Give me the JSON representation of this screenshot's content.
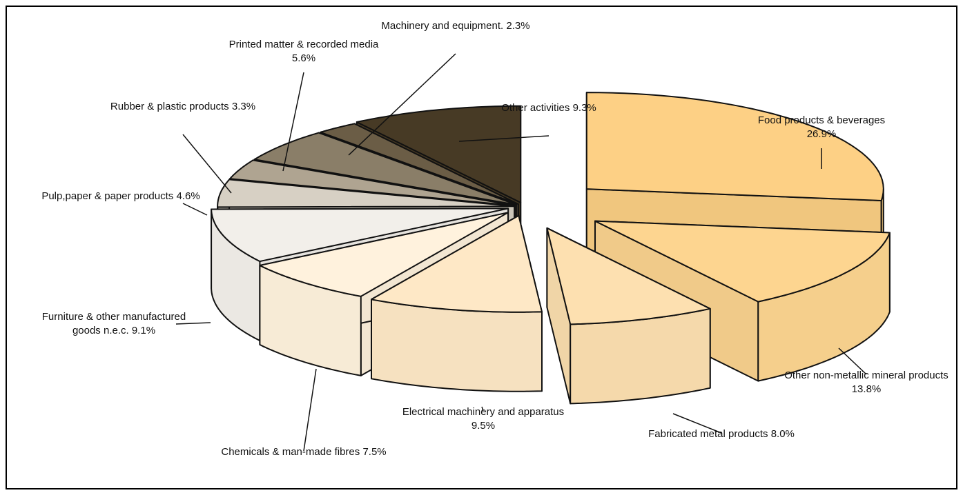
{
  "chart_data": {
    "type": "pie3d",
    "categories": [
      "Food products & beverages",
      "Other non-metallic mineral products",
      "Fabricated metal products",
      "Electrical machinery and apparatus",
      "Chemicals & man-made fibres",
      "Furniture & other manufactured goods n.e.c.",
      "Pulp,paper & paper products",
      "Rubber & plastic products",
      "Printed matter & recorded media",
      "Machinery and equipment.",
      "Other activities"
    ],
    "values": [
      26.9,
      13.8,
      8.0,
      9.5,
      7.5,
      9.1,
      4.6,
      3.3,
      5.6,
      2.3,
      9.3
    ],
    "value_labels": [
      "26.9%",
      "13.8%",
      "8.0%",
      "9.5%",
      "7.5%",
      "9.1%",
      "4.6%",
      "3.3%",
      "5.6%",
      "2.3%",
      "9.3%"
    ],
    "colors": [
      "#fdd085",
      "#fdd590",
      "#fde0b0",
      "#fee8c6",
      "#fff2dd",
      "#f2efea",
      "#d7d0c4",
      "#afa491",
      "#8a7e68",
      "#6b5d46",
      "#473a25"
    ]
  }
}
